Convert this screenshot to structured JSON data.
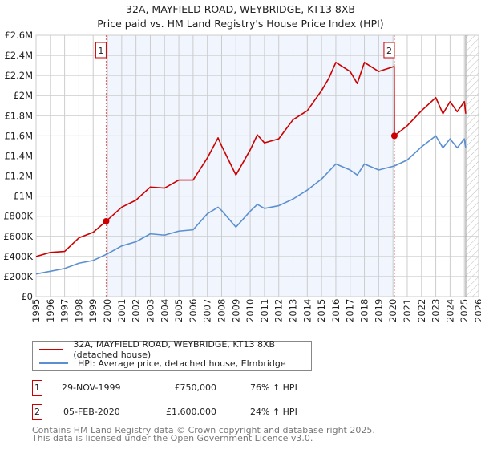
{
  "title_line1": "32A, MAYFIELD ROAD, WEYBRIDGE, KT13 8XB",
  "title_line2": "Price paid vs. HM Land Registry's House Price Index (HPI)",
  "chart_data": {
    "type": "line",
    "title": "32A, MAYFIELD ROAD, WEYBRIDGE, KT13 8XB — Price paid vs. HM Land Registry's House Price Index (HPI)",
    "xlim": [
      1995,
      2026
    ],
    "ylim": [
      0,
      2600000
    ],
    "x_ticks": [
      "1995",
      "1996",
      "1997",
      "1998",
      "1999",
      "2000",
      "2001",
      "2002",
      "2003",
      "2004",
      "2005",
      "2006",
      "2007",
      "2008",
      "2009",
      "2010",
      "2011",
      "2012",
      "2013",
      "2014",
      "2015",
      "2016",
      "2017",
      "2018",
      "2019",
      "2020",
      "2021",
      "2022",
      "2023",
      "2024",
      "2025",
      "2026"
    ],
    "y_ticks": [
      {
        "value": 0,
        "label": "£0"
      },
      {
        "value": 200000,
        "label": "£200K"
      },
      {
        "value": 400000,
        "label": "£400K"
      },
      {
        "value": 600000,
        "label": "£600K"
      },
      {
        "value": 800000,
        "label": "£800K"
      },
      {
        "value": 1000000,
        "label": "£1M"
      },
      {
        "value": 1200000,
        "label": "£1.2M"
      },
      {
        "value": 1400000,
        "label": "£1.4M"
      },
      {
        "value": 1600000,
        "label": "£1.6M"
      },
      {
        "value": 1800000,
        "label": "£1.8M"
      },
      {
        "value": 2000000,
        "label": "£2M"
      },
      {
        "value": 2200000,
        "label": "£2.2M"
      },
      {
        "value": 2400000,
        "label": "£2.4M"
      },
      {
        "value": 2600000,
        "label": "£2.6M"
      }
    ],
    "grid": true,
    "shaded_period": [
      1999.91,
      2020.1
    ],
    "hatched_after": 2025.1,
    "series": [
      {
        "name": "32A, MAYFIELD ROAD, WEYBRIDGE, KT13 8XB (detached house)",
        "color": "#cc0000",
        "x": [
          1995,
          1996,
          1997,
          1998,
          1999,
          1999.91,
          2001,
          2002,
          2003,
          2004,
          2005,
          2006,
          2007,
          2007.75,
          2008,
          2009,
          2010,
          2010.5,
          2011,
          2012,
          2013,
          2014,
          2015,
          2015.5,
          2016,
          2017,
          2017.5,
          2018,
          2019,
          2020.09,
          2020.1,
          2021,
          2022,
          2023,
          2023.5,
          2024,
          2024.5,
          2025,
          2025.1
        ],
        "y": [
          400000,
          440000,
          450000,
          585000,
          640000,
          750000,
          890000,
          960000,
          1090000,
          1080000,
          1160000,
          1160000,
          1380000,
          1580000,
          1500000,
          1210000,
          1460000,
          1610000,
          1530000,
          1570000,
          1760000,
          1850000,
          2050000,
          2170000,
          2330000,
          2240000,
          2120000,
          2330000,
          2240000,
          2290000,
          1600000,
          1700000,
          1850000,
          1980000,
          1820000,
          1940000,
          1840000,
          1940000,
          1820000
        ]
      },
      {
        "name": "HPI: Average price, detached house, Elmbridge",
        "color": "#5b8fd0",
        "x": [
          1995,
          1996,
          1997,
          1998,
          1999,
          2000,
          2001,
          2002,
          2003,
          2004,
          2005,
          2006,
          2007,
          2007.75,
          2008,
          2009,
          2010,
          2010.5,
          2011,
          2012,
          2013,
          2014,
          2015,
          2016,
          2017,
          2017.5,
          2018,
          2019,
          2020.1,
          2021,
          2022,
          2023,
          2023.5,
          2024,
          2024.5,
          2025,
          2025.1
        ],
        "y": [
          226000,
          253000,
          280000,
          333000,
          360000,
          426000,
          505000,
          546000,
          625000,
          612000,
          652000,
          665000,
          825000,
          890000,
          857000,
          692000,
          850000,
          918000,
          878000,
          905000,
          971000,
          1060000,
          1170000,
          1320000,
          1260000,
          1210000,
          1320000,
          1260000,
          1300000,
          1360000,
          1490000,
          1600000,
          1480000,
          1570000,
          1480000,
          1570000,
          1480000
        ]
      }
    ],
    "annotations": [
      {
        "label": "1",
        "x": 1999.91,
        "y": 750000
      },
      {
        "label": "2",
        "x": 2020.1,
        "y": 1600000
      }
    ]
  },
  "legend": [
    {
      "label": "32A, MAYFIELD ROAD, WEYBRIDGE, KT13 8XB (detached house)",
      "color": "#cc0000"
    },
    {
      "label": "HPI: Average price, detached house, Elmbridge",
      "color": "#5b8fd0"
    }
  ],
  "transactions": [
    {
      "num": "1",
      "date": "29-NOV-1999",
      "price": "£750,000",
      "hpi": "76% ↑ HPI"
    },
    {
      "num": "2",
      "date": "05-FEB-2020",
      "price": "£1,600,000",
      "hpi": "24% ↑ HPI"
    }
  ],
  "footer_line1": "Contains HM Land Registry data © Crown copyright and database right 2025.",
  "footer_line2": "This data is licensed under the Open Government Licence v3.0."
}
